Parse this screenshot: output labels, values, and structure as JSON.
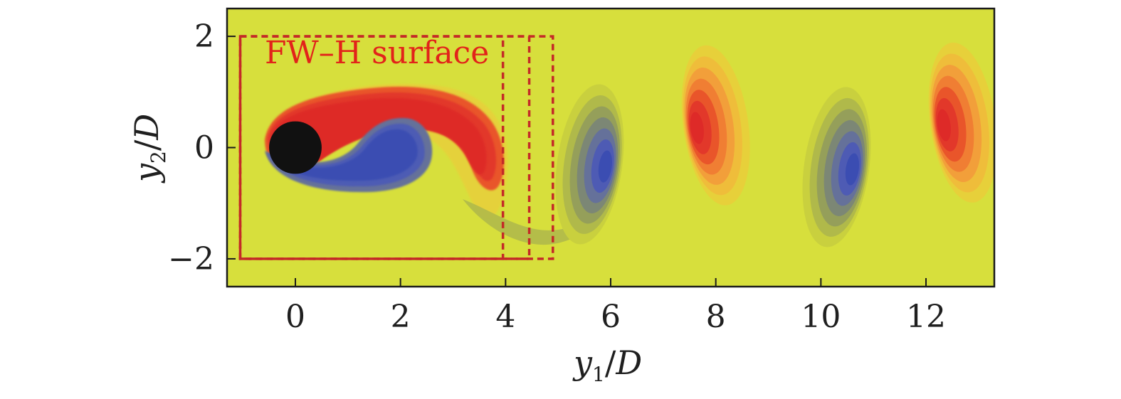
{
  "chart_data": {
    "type": "heatmap",
    "description_free": true,
    "xlabel_parts": {
      "var": "y",
      "sub": "1",
      "div": "/",
      "den": "D"
    },
    "ylabel_parts": {
      "var": "y",
      "sub": "2",
      "div": "/",
      "den": "D"
    },
    "xlim": [
      -1.3,
      13.3
    ],
    "ylim": [
      -2.5,
      2.5
    ],
    "xticks": [
      0,
      2,
      4,
      6,
      8,
      10,
      12
    ],
    "xtick_labels": [
      "0",
      "2",
      "4",
      "6",
      "8",
      "10",
      "12"
    ],
    "yticks": [
      2,
      0,
      -2
    ],
    "ytick_labels": [
      "2",
      "0",
      "−2"
    ],
    "cylinder": {
      "center": [
        0,
        0
      ],
      "diameter": 1
    },
    "annotation": {
      "text": "FW–H surface"
    },
    "fwh_surfaces": [
      {
        "x0": -1.05,
        "x1": 3.95,
        "y0": -2,
        "y1": 2
      },
      {
        "x0": -1.05,
        "x1": 4.45,
        "y0": -2,
        "y1": 2
      },
      {
        "x0": -1.05,
        "x1": 4.9,
        "y0": -2,
        "y1": 2
      }
    ],
    "vortices": [
      {
        "x": 5.6,
        "y": -0.3,
        "sign": "negative"
      },
      {
        "x": 8.0,
        "y": 0.4,
        "sign": "positive"
      },
      {
        "x": 10.3,
        "y": -0.35,
        "sign": "negative"
      },
      {
        "x": 12.7,
        "y": 0.45,
        "sign": "positive"
      }
    ],
    "colors": {
      "background": "#d7df3c",
      "positive_levels": [
        "#e7d03a",
        "#efbd3a",
        "#f29f3a",
        "#f07e33",
        "#e9552a",
        "#e2382a",
        "#de2a28"
      ],
      "negative_levels": [
        "#c9d03e",
        "#b0b94a",
        "#959f5a",
        "#7c8775",
        "#65719a",
        "#4e5bb4",
        "#3b4db2"
      ],
      "cylinder": "#111111",
      "fwh": "#c42a27",
      "frame": "#1a1a1a"
    }
  }
}
